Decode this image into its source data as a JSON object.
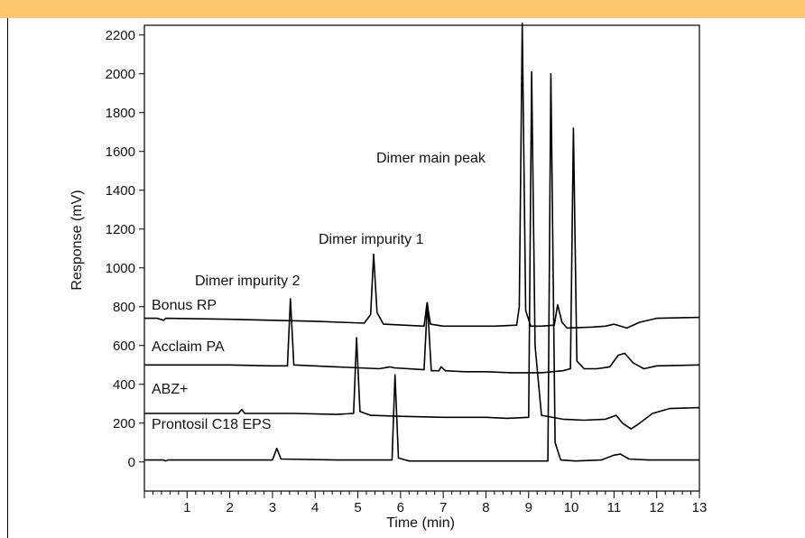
{
  "colors": {
    "band": "#fcc96a",
    "line": "#000000"
  },
  "chart_data": {
    "type": "line",
    "title": "",
    "xlabel": "Time (min)",
    "ylabel": "Response (mV)",
    "xlim": [
      0,
      13
    ],
    "ylim": [
      -150,
      2250
    ],
    "x_ticks": [
      1,
      2,
      3,
      4,
      5,
      6,
      7,
      8,
      9,
      10,
      11,
      12,
      13
    ],
    "y_ticks": [
      0,
      200,
      400,
      600,
      800,
      1000,
      1200,
      1400,
      1600,
      1800,
      2000,
      2200
    ],
    "grid": false,
    "series": [
      {
        "name": "Bonus RP",
        "baseline": 740,
        "points": [
          [
            0,
            740
          ],
          [
            0.3,
            740
          ],
          [
            0.45,
            730
          ],
          [
            0.5,
            740
          ],
          [
            2,
            735
          ],
          [
            3.0,
            730
          ],
          [
            4.0,
            725
          ],
          [
            4.6,
            720
          ],
          [
            5.15,
            715
          ],
          [
            5.3,
            760
          ],
          [
            5.37,
            1070
          ],
          [
            5.45,
            770
          ],
          [
            5.6,
            710
          ],
          [
            6.55,
            700
          ],
          [
            6.62,
            820
          ],
          [
            6.7,
            710
          ],
          [
            7.0,
            700
          ],
          [
            7.5,
            700
          ],
          [
            8.2,
            700
          ],
          [
            8.72,
            705
          ],
          [
            8.78,
            800
          ],
          [
            8.85,
            2260
          ],
          [
            8.93,
            780
          ],
          [
            9.05,
            700
          ],
          [
            9.3,
            700
          ],
          [
            9.6,
            705
          ],
          [
            9.68,
            810
          ],
          [
            9.78,
            720
          ],
          [
            9.9,
            690
          ],
          [
            10.5,
            695
          ],
          [
            10.8,
            700
          ],
          [
            11.0,
            710
          ],
          [
            11.3,
            690
          ],
          [
            11.6,
            720
          ],
          [
            12.0,
            740
          ],
          [
            13.0,
            745
          ]
        ]
      },
      {
        "name": "Acclaim PA",
        "baseline": 500,
        "points": [
          [
            0,
            500
          ],
          [
            1.0,
            500
          ],
          [
            2.0,
            500
          ],
          [
            3.0,
            495
          ],
          [
            3.35,
            495
          ],
          [
            3.42,
            840
          ],
          [
            3.5,
            500
          ],
          [
            4.5,
            490
          ],
          [
            5.5,
            480
          ],
          [
            5.75,
            490
          ],
          [
            5.85,
            485
          ],
          [
            6.55,
            475
          ],
          [
            6.63,
            820
          ],
          [
            6.72,
            470
          ],
          [
            6.9,
            470
          ],
          [
            6.95,
            490
          ],
          [
            7.05,
            470
          ],
          [
            7.5,
            465
          ],
          [
            8.0,
            465
          ],
          [
            8.6,
            460
          ],
          [
            9.0,
            460
          ],
          [
            9.3,
            460
          ],
          [
            9.8,
            470
          ],
          [
            9.98,
            480
          ],
          [
            10.05,
            1720
          ],
          [
            10.13,
            520
          ],
          [
            10.3,
            480
          ],
          [
            10.6,
            480
          ],
          [
            10.9,
            490
          ],
          [
            11.1,
            550
          ],
          [
            11.25,
            560
          ],
          [
            11.45,
            510
          ],
          [
            11.7,
            480
          ],
          [
            12.0,
            495
          ],
          [
            13.0,
            500
          ]
        ]
      },
      {
        "name": "ABZ+",
        "baseline": 250,
        "points": [
          [
            0,
            250
          ],
          [
            1.0,
            250
          ],
          [
            2.2,
            250
          ],
          [
            2.28,
            270
          ],
          [
            2.35,
            250
          ],
          [
            3.5,
            250
          ],
          [
            4.5,
            245
          ],
          [
            4.9,
            250
          ],
          [
            4.97,
            640
          ],
          [
            5.05,
            260
          ],
          [
            5.3,
            240
          ],
          [
            6.0,
            235
          ],
          [
            7.0,
            230
          ],
          [
            8.0,
            230
          ],
          [
            8.5,
            225
          ],
          [
            9.0,
            230
          ],
          [
            9.07,
            2010
          ],
          [
            9.15,
            600
          ],
          [
            9.3,
            240
          ],
          [
            9.8,
            220
          ],
          [
            10.3,
            215
          ],
          [
            10.8,
            220
          ],
          [
            11.05,
            240
          ],
          [
            11.2,
            200
          ],
          [
            11.4,
            170
          ],
          [
            11.6,
            200
          ],
          [
            11.9,
            250
          ],
          [
            12.3,
            275
          ],
          [
            13.0,
            280
          ]
        ]
      },
      {
        "name": "Prontosil C18 EPS",
        "baseline": 10,
        "points": [
          [
            0,
            10
          ],
          [
            0.45,
            10
          ],
          [
            0.5,
            5
          ],
          [
            0.55,
            10
          ],
          [
            3.0,
            10
          ],
          [
            3.1,
            70
          ],
          [
            3.2,
            15
          ],
          [
            4.5,
            10
          ],
          [
            5.8,
            10
          ],
          [
            5.87,
            450
          ],
          [
            5.95,
            20
          ],
          [
            6.2,
            5
          ],
          [
            7.0,
            5
          ],
          [
            8.0,
            5
          ],
          [
            9.0,
            5
          ],
          [
            9.45,
            5
          ],
          [
            9.52,
            2000
          ],
          [
            9.62,
            100
          ],
          [
            9.75,
            10
          ],
          [
            10.1,
            5
          ],
          [
            10.7,
            10
          ],
          [
            11.0,
            35
          ],
          [
            11.15,
            40
          ],
          [
            11.35,
            15
          ],
          [
            11.8,
            10
          ],
          [
            13.0,
            10
          ]
        ]
      }
    ],
    "annotations": [
      "Dimer main peak",
      "Dimer impurity 1",
      "Dimer impurity 2"
    ]
  }
}
